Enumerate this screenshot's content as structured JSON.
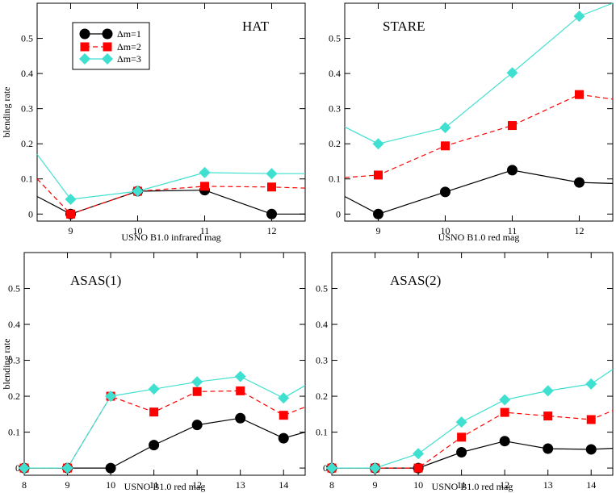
{
  "colors": {
    "series1": "#000000",
    "series2": "#ff0000",
    "series3": "#40e0d0",
    "axes": "#000000"
  },
  "legend": [
    {
      "label": "Δm=1",
      "color": "#000000",
      "marker": "circle",
      "dash": "solid"
    },
    {
      "label": "Δm=2",
      "color": "#ff0000",
      "marker": "square",
      "dash": "dashed"
    },
    {
      "label": "Δm=3",
      "color": "#40e0d0",
      "marker": "diamond",
      "dash": "solid"
    }
  ],
  "chart_data": [
    {
      "type": "line",
      "title": "HAT",
      "xlabel": "USNO B1.0 infrared mag",
      "ylabel": "blending rate",
      "xlim": [
        8.5,
        12.5
      ],
      "ylim": [
        -0.02,
        0.6
      ],
      "xticks": [
        9,
        10,
        11,
        12
      ],
      "yticks": [
        0,
        0.1,
        0.2,
        0.3,
        0.4,
        0.5
      ],
      "ytick_labels": [
        "0",
        "0.1",
        "0.2",
        "0.3",
        "0.4",
        "0.5"
      ],
      "series": [
        {
          "name": "Δm=1",
          "x": [
            8.5,
            9,
            10,
            11,
            12,
            12.5
          ],
          "values": [
            0.05,
            0.0,
            0.065,
            0.068,
            0.0,
            0.0
          ],
          "markers": [
            false,
            true,
            true,
            true,
            true,
            false
          ]
        },
        {
          "name": "Δm=2",
          "x": [
            8.5,
            9,
            10,
            11,
            12,
            12.5
          ],
          "values": [
            0.1,
            0.0,
            0.065,
            0.079,
            0.077,
            0.074
          ],
          "markers": [
            false,
            true,
            true,
            true,
            true,
            false
          ]
        },
        {
          "name": "Δm=3",
          "x": [
            8.5,
            9,
            10,
            11,
            12,
            12.5
          ],
          "values": [
            0.17,
            0.042,
            0.065,
            0.118,
            0.115,
            0.115
          ],
          "markers": [
            false,
            true,
            true,
            true,
            true,
            false
          ]
        }
      ]
    },
    {
      "type": "line",
      "title": "STARE",
      "xlabel": "USNO B1.0 red mag",
      "ylabel": "",
      "xlim": [
        8.5,
        12.5
      ],
      "ylim": [
        -0.02,
        0.6
      ],
      "xticks": [
        9,
        10,
        11,
        12
      ],
      "yticks": [
        0,
        0.1,
        0.2,
        0.3,
        0.4,
        0.5
      ],
      "ytick_labels": [
        "0",
        "0.1",
        "0.2",
        "0.3",
        "0.4",
        "0.5"
      ],
      "series": [
        {
          "name": "Δm=1",
          "x": [
            8.5,
            9,
            10,
            11,
            12,
            12.5
          ],
          "values": [
            0.05,
            0.0,
            0.063,
            0.125,
            0.09,
            0.087
          ],
          "markers": [
            false,
            true,
            true,
            true,
            true,
            false
          ]
        },
        {
          "name": "Δm=2",
          "x": [
            8.5,
            9,
            10,
            11,
            12,
            12.5
          ],
          "values": [
            0.104,
            0.111,
            0.194,
            0.252,
            0.34,
            0.327
          ],
          "markers": [
            false,
            true,
            true,
            true,
            true,
            false
          ]
        },
        {
          "name": "Δm=3",
          "x": [
            8.5,
            9,
            10,
            11,
            12,
            12.5
          ],
          "values": [
            0.248,
            0.2,
            0.246,
            0.402,
            0.563,
            0.6
          ],
          "markers": [
            false,
            true,
            true,
            true,
            true,
            false
          ]
        }
      ]
    },
    {
      "type": "line",
      "title": "ASAS(1)",
      "xlabel": "USNO B1.0 red mag",
      "ylabel": "blending rate",
      "xlim": [
        8,
        14.5
      ],
      "ylim": [
        -0.02,
        0.6
      ],
      "xticks": [
        8,
        9,
        10,
        11,
        12,
        13,
        14
      ],
      "yticks": [
        0,
        0.1,
        0.2,
        0.3,
        0.4,
        0.5
      ],
      "ytick_labels": [
        "0",
        "0.1",
        "0.2",
        "0.3",
        "0.4",
        "0.5"
      ],
      "series": [
        {
          "name": "Δm=1",
          "x": [
            8,
            9,
            10,
            11,
            12,
            13,
            14,
            14.5
          ],
          "values": [
            0,
            0,
            0,
            0.064,
            0.12,
            0.139,
            0.083,
            0.1
          ],
          "markers": [
            true,
            true,
            true,
            true,
            true,
            true,
            true,
            false
          ]
        },
        {
          "name": "Δm=2",
          "x": [
            8,
            9,
            10,
            11,
            12,
            13,
            14,
            14.5
          ],
          "values": [
            0,
            0,
            0.2,
            0.156,
            0.213,
            0.215,
            0.147,
            0.17
          ],
          "markers": [
            true,
            true,
            true,
            true,
            true,
            true,
            true,
            false
          ]
        },
        {
          "name": "Δm=3",
          "x": [
            8,
            9,
            10,
            11,
            12,
            13,
            14,
            14.5
          ],
          "values": [
            0,
            0,
            0.2,
            0.22,
            0.24,
            0.255,
            0.195,
            0.23
          ],
          "markers": [
            true,
            true,
            true,
            true,
            true,
            true,
            true,
            false
          ]
        }
      ]
    },
    {
      "type": "line",
      "title": "ASAS(2)",
      "xlabel": "USNO B1.0 red mag",
      "ylabel": "",
      "xlim": [
        8,
        14.5
      ],
      "ylim": [
        -0.02,
        0.6
      ],
      "xticks": [
        8,
        9,
        10,
        11,
        12,
        13,
        14
      ],
      "yticks": [
        0,
        0.1,
        0.2,
        0.3,
        0.4,
        0.5
      ],
      "ytick_labels": [
        "0",
        "0.1",
        "0.2",
        "0.3",
        "0.4",
        "0.5"
      ],
      "series": [
        {
          "name": "Δm=1",
          "x": [
            8,
            9,
            10,
            11,
            12,
            13,
            14,
            14.5
          ],
          "values": [
            0,
            0,
            0,
            0.044,
            0.075,
            0.054,
            0.052,
            0.055
          ],
          "markers": [
            true,
            true,
            true,
            true,
            true,
            true,
            true,
            false
          ]
        },
        {
          "name": "Δm=2",
          "x": [
            8,
            9,
            10,
            11,
            12,
            13,
            14,
            14.5
          ],
          "values": [
            0,
            0,
            0,
            0.086,
            0.155,
            0.145,
            0.135,
            0.16
          ],
          "markers": [
            true,
            true,
            true,
            true,
            true,
            true,
            true,
            false
          ]
        },
        {
          "name": "Δm=3",
          "x": [
            8,
            9,
            10,
            11,
            12,
            13,
            14,
            14.5
          ],
          "values": [
            0,
            0,
            0.04,
            0.128,
            0.19,
            0.215,
            0.234,
            0.275
          ],
          "markers": [
            true,
            true,
            true,
            true,
            true,
            true,
            true,
            false
          ]
        }
      ]
    }
  ]
}
